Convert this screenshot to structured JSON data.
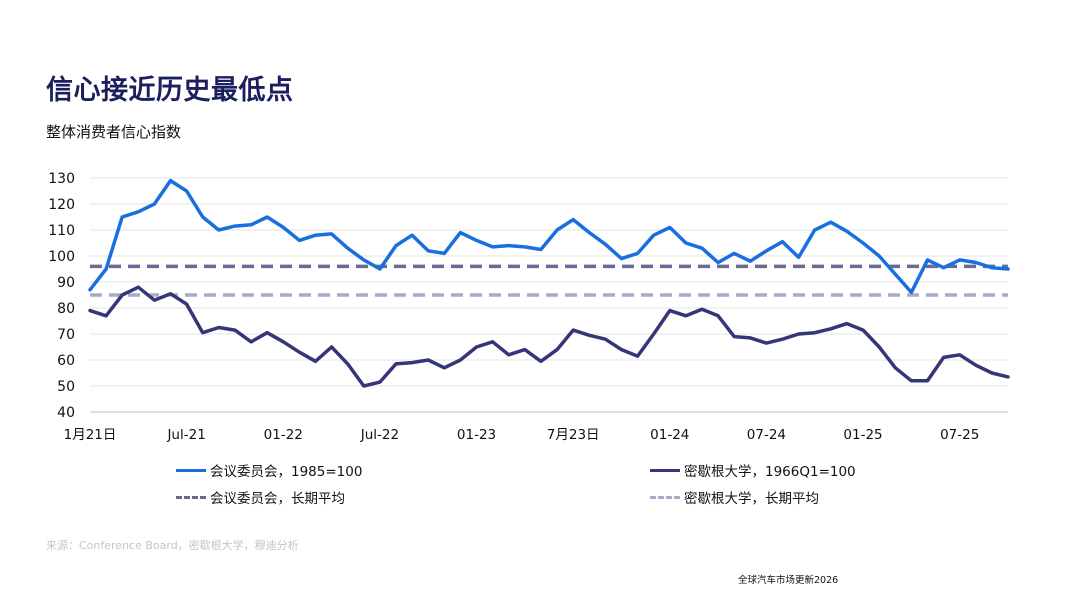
{
  "title": "信心接近历史最低点",
  "subtitle": "整体消费者信心指数",
  "source": "来源：Conference Board，密歇根大学，穆迪分析",
  "footer": "全球汽车市场更新2026",
  "colors": {
    "conference": "#1a6fe0",
    "michigan": "#35357a",
    "conference_avg": "#6a6a94",
    "michigan_avg": "#a9a9c9",
    "grid": "#e3e3e3"
  },
  "chart_data": {
    "type": "line",
    "ylim": [
      40,
      130
    ],
    "yticks": [
      40,
      50,
      60,
      70,
      80,
      90,
      100,
      110,
      120,
      130
    ],
    "x_tick_labels": [
      {
        "label": "1月21日",
        "index": 0
      },
      {
        "label": "Jul-21",
        "index": 6
      },
      {
        "label": "01-22",
        "index": 12
      },
      {
        "label": "Jul-22",
        "index": 18
      },
      {
        "label": "01-23",
        "index": 24
      },
      {
        "label": "7月23日",
        "index": 30
      },
      {
        "label": "01-24",
        "index": 36
      },
      {
        "label": "07-24",
        "index": 42
      },
      {
        "label": "01-25",
        "index": 48
      },
      {
        "label": "07-25",
        "index": 54
      }
    ],
    "series": [
      {
        "name": "会议委员会，1985=100",
        "style": "solid",
        "color_key": "conference",
        "values": [
          87,
          95,
          115,
          117,
          120,
          129,
          125,
          115,
          110,
          111.5,
          112,
          115,
          111,
          106,
          108,
          108.5,
          103,
          98.5,
          95,
          104,
          108,
          102,
          101,
          109,
          106,
          103.5,
          104,
          103.5,
          102.5,
          110,
          114,
          109,
          104.5,
          99,
          101,
          108,
          111,
          105,
          103,
          97.5,
          101,
          98,
          102,
          105.5,
          99.5,
          110,
          113,
          109.5,
          105,
          100,
          93,
          86,
          98.5,
          95.5,
          98.5,
          97.5,
          95.5,
          95
        ]
      },
      {
        "name": "密歇根大学，1966Q1=100",
        "style": "solid",
        "color_key": "michigan",
        "values": [
          79,
          77,
          85,
          88,
          83,
          85.5,
          81.5,
          70.5,
          72.5,
          71.5,
          67,
          70.5,
          67,
          63,
          59.5,
          65,
          58.5,
          50,
          51.5,
          58.5,
          59,
          60,
          57,
          60,
          65,
          67,
          62,
          64,
          59.5,
          64,
          71.5,
          69.5,
          68,
          64,
          61.5,
          70,
          79,
          77,
          79.5,
          77,
          69,
          68.5,
          66.5,
          68,
          70,
          70.5,
          72,
          74,
          71.5,
          65,
          57,
          52,
          52,
          61,
          62,
          58,
          55,
          53.5
        ]
      },
      {
        "name": "会议委员会，长期平均",
        "style": "dashed",
        "color_key": "conference_avg",
        "constant": 96
      },
      {
        "name": "密歇根大学，长期平均",
        "style": "dashed",
        "color_key": "michigan_avg",
        "constant": 85
      }
    ]
  }
}
